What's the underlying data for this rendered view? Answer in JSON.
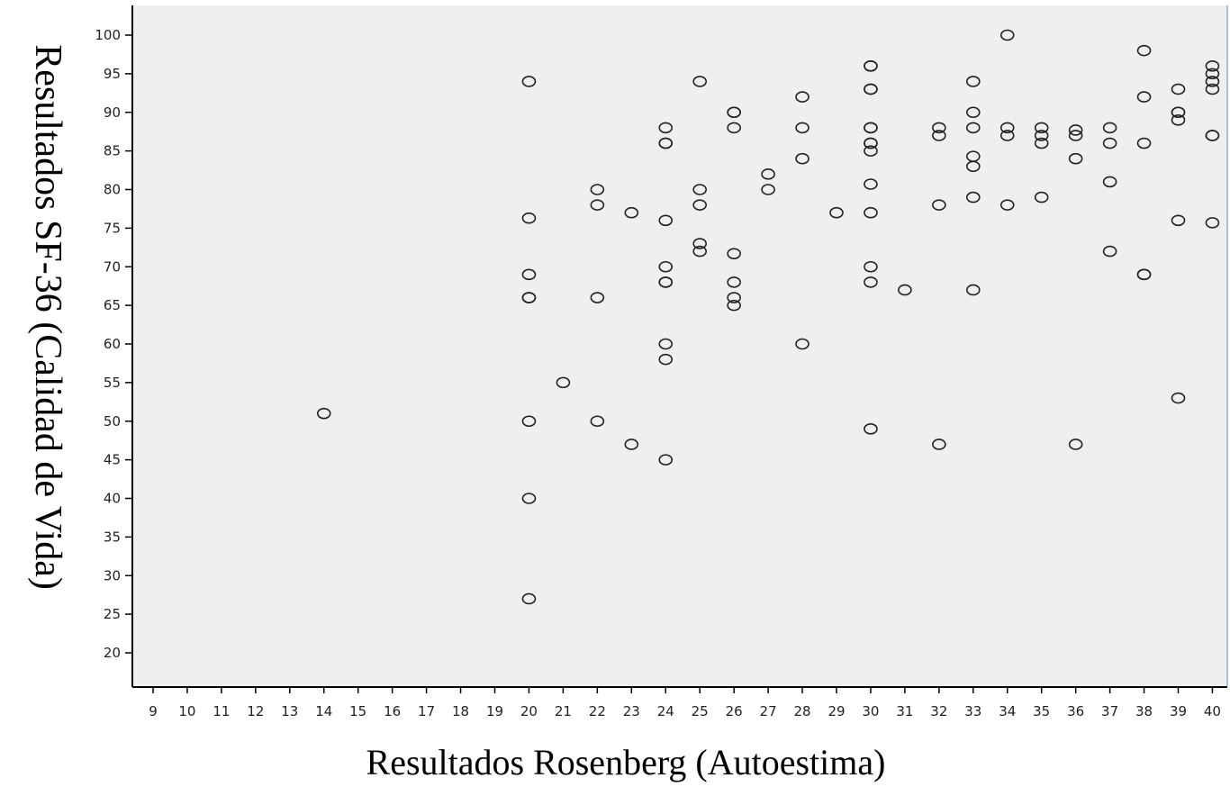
{
  "chart_data": {
    "type": "scatter",
    "xlabel": "Resultados Rosenberg (Autoestima)",
    "ylabel": "Resultados SF-36 (Calidad de Vida)",
    "x_ticks": [
      "9",
      "10",
      "11",
      "12",
      "13",
      "14",
      "15",
      "16",
      "17",
      "18",
      "19",
      "20",
      "21",
      "22",
      "23",
      "24",
      "25",
      "26",
      "27",
      "28",
      "29",
      "30",
      "31",
      "32",
      "33",
      "34",
      "35",
      "36",
      "37",
      "38",
      "39",
      "40"
    ],
    "y_ticks": [
      "20",
      "25",
      "30",
      "35",
      "40",
      "45",
      "50",
      "55",
      "60",
      "65",
      "70",
      "75",
      "80",
      "85",
      "90",
      "95",
      "100"
    ],
    "ylim": [
      15.5,
      104
    ],
    "grid": false,
    "background": "#efefef",
    "points": [
      {
        "x": 14,
        "y": 51
      },
      {
        "x": 20,
        "y": 94
      },
      {
        "x": 20,
        "y": 76.3
      },
      {
        "x": 20,
        "y": 69
      },
      {
        "x": 20,
        "y": 66
      },
      {
        "x": 20,
        "y": 66
      },
      {
        "x": 20,
        "y": 50
      },
      {
        "x": 20,
        "y": 40
      },
      {
        "x": 20,
        "y": 27
      },
      {
        "x": 21,
        "y": 55
      },
      {
        "x": 22,
        "y": 80
      },
      {
        "x": 22,
        "y": 78
      },
      {
        "x": 22,
        "y": 66
      },
      {
        "x": 22,
        "y": 50
      },
      {
        "x": 23,
        "y": 77
      },
      {
        "x": 23,
        "y": 47
      },
      {
        "x": 24,
        "y": 88
      },
      {
        "x": 24,
        "y": 86
      },
      {
        "x": 24,
        "y": 86
      },
      {
        "x": 24,
        "y": 76
      },
      {
        "x": 24,
        "y": 70
      },
      {
        "x": 24,
        "y": 68
      },
      {
        "x": 24,
        "y": 68
      },
      {
        "x": 24,
        "y": 60
      },
      {
        "x": 24,
        "y": 58
      },
      {
        "x": 24,
        "y": 45
      },
      {
        "x": 25,
        "y": 94
      },
      {
        "x": 25,
        "y": 80
      },
      {
        "x": 25,
        "y": 78
      },
      {
        "x": 25,
        "y": 73
      },
      {
        "x": 25,
        "y": 72
      },
      {
        "x": 26,
        "y": 90
      },
      {
        "x": 26,
        "y": 90
      },
      {
        "x": 26,
        "y": 88
      },
      {
        "x": 26,
        "y": 71.7
      },
      {
        "x": 26,
        "y": 68
      },
      {
        "x": 26,
        "y": 66
      },
      {
        "x": 26,
        "y": 65
      },
      {
        "x": 27,
        "y": 82
      },
      {
        "x": 27,
        "y": 80
      },
      {
        "x": 28,
        "y": 92
      },
      {
        "x": 28,
        "y": 88
      },
      {
        "x": 28,
        "y": 84
      },
      {
        "x": 28,
        "y": 60
      },
      {
        "x": 29,
        "y": 77
      },
      {
        "x": 30,
        "y": 96
      },
      {
        "x": 30,
        "y": 96
      },
      {
        "x": 30,
        "y": 93
      },
      {
        "x": 30,
        "y": 93
      },
      {
        "x": 30,
        "y": 88
      },
      {
        "x": 30,
        "y": 88
      },
      {
        "x": 30,
        "y": 86
      },
      {
        "x": 30,
        "y": 86
      },
      {
        "x": 30,
        "y": 85
      },
      {
        "x": 30,
        "y": 80.7
      },
      {
        "x": 30,
        "y": 77
      },
      {
        "x": 30,
        "y": 70
      },
      {
        "x": 30,
        "y": 68
      },
      {
        "x": 30,
        "y": 49
      },
      {
        "x": 31,
        "y": 67
      },
      {
        "x": 32,
        "y": 88
      },
      {
        "x": 32,
        "y": 87
      },
      {
        "x": 32,
        "y": 78
      },
      {
        "x": 32,
        "y": 47
      },
      {
        "x": 33,
        "y": 94
      },
      {
        "x": 33,
        "y": 90
      },
      {
        "x": 33,
        "y": 88
      },
      {
        "x": 33,
        "y": 84.3
      },
      {
        "x": 33,
        "y": 83
      },
      {
        "x": 33,
        "y": 79
      },
      {
        "x": 33,
        "y": 67
      },
      {
        "x": 34,
        "y": 100
      },
      {
        "x": 34,
        "y": 88
      },
      {
        "x": 34,
        "y": 87
      },
      {
        "x": 34,
        "y": 78
      },
      {
        "x": 35,
        "y": 88
      },
      {
        "x": 35,
        "y": 87
      },
      {
        "x": 35,
        "y": 86
      },
      {
        "x": 35,
        "y": 79
      },
      {
        "x": 36,
        "y": 87.7
      },
      {
        "x": 36,
        "y": 87
      },
      {
        "x": 36,
        "y": 84
      },
      {
        "x": 36,
        "y": 47
      },
      {
        "x": 37,
        "y": 88
      },
      {
        "x": 37,
        "y": 86
      },
      {
        "x": 37,
        "y": 81
      },
      {
        "x": 37,
        "y": 72
      },
      {
        "x": 38,
        "y": 98
      },
      {
        "x": 38,
        "y": 92
      },
      {
        "x": 38,
        "y": 86
      },
      {
        "x": 38,
        "y": 69
      },
      {
        "x": 38,
        "y": 69
      },
      {
        "x": 39,
        "y": 93
      },
      {
        "x": 39,
        "y": 90
      },
      {
        "x": 39,
        "y": 90
      },
      {
        "x": 39,
        "y": 89
      },
      {
        "x": 39,
        "y": 76
      },
      {
        "x": 39,
        "y": 53
      },
      {
        "x": 40,
        "y": 96
      },
      {
        "x": 40,
        "y": 95
      },
      {
        "x": 40,
        "y": 94
      },
      {
        "x": 40,
        "y": 93
      },
      {
        "x": 40,
        "y": 87
      },
      {
        "x": 40,
        "y": 87
      },
      {
        "x": 40,
        "y": 75.7
      }
    ]
  }
}
